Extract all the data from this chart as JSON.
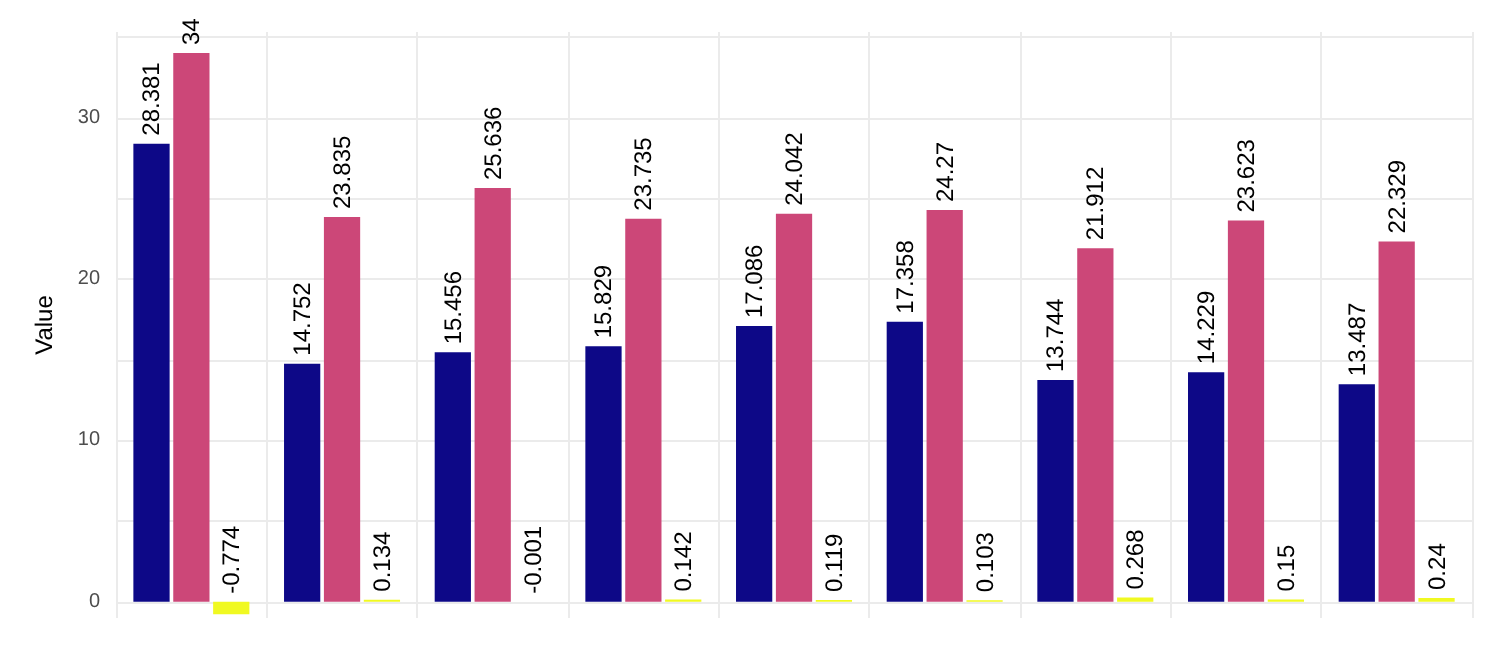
{
  "chart_data": {
    "type": "bar",
    "ylabel": "Value",
    "categories": [
      null,
      null,
      null,
      null,
      null,
      null,
      null,
      null,
      null
    ],
    "series": [
      {
        "color": "#0d0887",
        "values": [
          28.381,
          14.752,
          15.456,
          15.829,
          17.086,
          17.358,
          13.744,
          14.229,
          13.487
        ]
      },
      {
        "color": "#cc4778",
        "values": [
          34,
          23.835,
          25.636,
          23.735,
          24.042,
          24.27,
          21.912,
          23.623,
          22.329
        ]
      },
      {
        "color": "#f0f921",
        "values": [
          -0.774,
          0.134,
          -0.001,
          0.142,
          0.119,
          0.103,
          0.268,
          0.15,
          0.24
        ]
      }
    ],
    "ylim": [
      -1,
      35.3
    ],
    "yticks": [
      0,
      {
        "value": 5,
        "label": null
      },
      10,
      {
        "value": 15,
        "label": null
      },
      20,
      {
        "value": 25,
        "label": null
      },
      30,
      {
        "value": 35,
        "label": null
      }
    ],
    "grid": true,
    "data_labels": true,
    "tick_labels": "y"
  }
}
